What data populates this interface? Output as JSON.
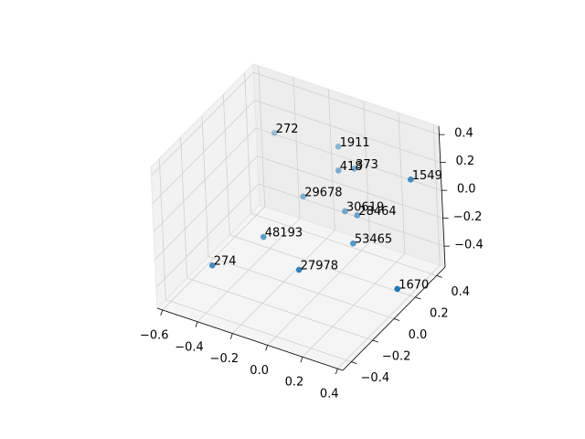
{
  "chart_data": {
    "type": "scatter3d",
    "x": [
      -0.37,
      -0.1,
      -0.06,
      0.0,
      0.35,
      -0.2,
      -0.02,
      0.05,
      -0.26,
      0.09,
      -0.39,
      -0.03,
      0.38
    ],
    "y": [
      0.24,
      0.39,
      0.32,
      0.37,
      0.33,
      0.21,
      0.3,
      0.3,
      -0.07,
      0.19,
      -0.34,
      -0.12,
      0.12
    ],
    "z": [
      0.26,
      0.16,
      0.06,
      0.06,
      0.16,
      -0.1,
      -0.2,
      -0.2,
      -0.2,
      -0.3,
      -0.25,
      -0.3,
      -0.45
    ],
    "labels": [
      272,
      1911,
      418,
      373,
      1549,
      29678,
      30619,
      28464,
      48193,
      53465,
      274,
      27978,
      1670
    ],
    "color": "#1f77b4",
    "xlim": [
      -0.63,
      0.43
    ],
    "ylim": [
      -0.48,
      0.48
    ],
    "zlim": [
      -0.55,
      0.46
    ],
    "xticks": [
      {
        "value": -0.6,
        "label": "−0.6"
      },
      {
        "value": -0.4,
        "label": "−0.4"
      },
      {
        "value": -0.2,
        "label": "−0.2"
      },
      {
        "value": 0,
        "label": "0.0"
      },
      0.2,
      0.4
    ],
    "yticks": [
      {
        "value": -0.4,
        "label": "−0.4"
      },
      {
        "value": -0.2,
        "label": "−0.2"
      },
      {
        "value": 0,
        "label": "0.0"
      },
      0.2,
      0.4
    ],
    "zticks": [
      {
        "value": -0.4,
        "label": "−0.4"
      },
      {
        "value": -0.2,
        "label": "−0.2"
      },
      {
        "value": 0,
        "label": "0.0"
      },
      0.2,
      0.4
    ],
    "grid": true
  }
}
